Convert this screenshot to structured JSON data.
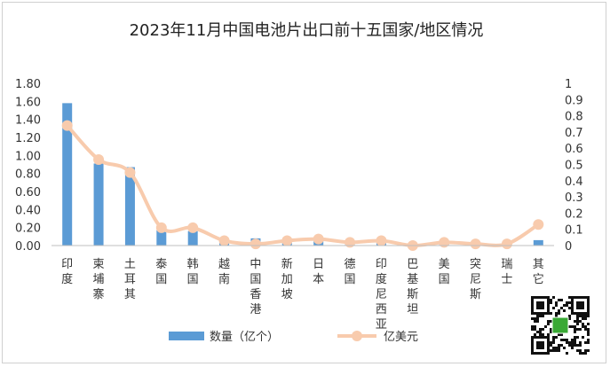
{
  "chart_data": {
    "type": "bar+line",
    "title": "2023年11月中国电池片出口前十五国家/地区情况",
    "categories": [
      "印度",
      "柬埔寨",
      "土耳其",
      "泰国",
      "韩国",
      "越南",
      "中国香港",
      "新加坡",
      "日本",
      "德国",
      "印度尼西亚",
      "巴基斯坦",
      "美国",
      "突尼斯",
      "瑞士",
      "其它"
    ],
    "series": [
      {
        "name": "数量（亿个）",
        "type": "bar",
        "axis": "left",
        "color": "#5b9bd5",
        "values": [
          1.58,
          0.91,
          0.87,
          0.17,
          0.16,
          0.04,
          0.08,
          0.03,
          0.05,
          0.03,
          0.04,
          0.02,
          0.02,
          0.01,
          0.01,
          0.06
        ]
      },
      {
        "name": "亿美元",
        "type": "line",
        "axis": "right",
        "color": "#f8cbad",
        "values": [
          0.74,
          0.53,
          0.45,
          0.11,
          0.11,
          0.03,
          0.01,
          0.03,
          0.04,
          0.02,
          0.03,
          0.0,
          0.02,
          0.01,
          0.01,
          0.13
        ]
      }
    ],
    "y_left": {
      "min": 0,
      "max": 1.8,
      "ticks": [
        "0.00",
        "0.20",
        "0.40",
        "0.60",
        "0.80",
        "1.00",
        "1.20",
        "1.40",
        "1.60",
        "1.80"
      ]
    },
    "y_right": {
      "min": 0,
      "max": 1,
      "ticks": [
        "0",
        "0.1",
        "0.2",
        "0.3",
        "0.4",
        "0.5",
        "0.6",
        "0.7",
        "0.8",
        "0.9",
        "1"
      ]
    },
    "grid": false,
    "legend": "bottom-center"
  }
}
